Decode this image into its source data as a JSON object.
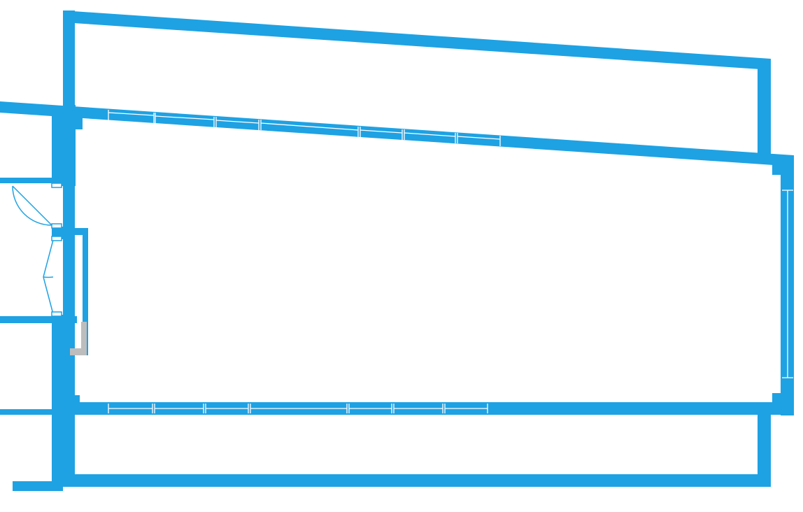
{
  "diagram": {
    "kind": "floor-plan",
    "colors": {
      "background": "#ffffff",
      "wall": "#1ea2e3",
      "window_line": "#ffffff",
      "column": "#bdbdbd"
    },
    "elements": {
      "top_windows": 7,
      "bottom_windows": 7,
      "swing_doors": 1,
      "double_doors": 1,
      "columns": 1
    }
  }
}
